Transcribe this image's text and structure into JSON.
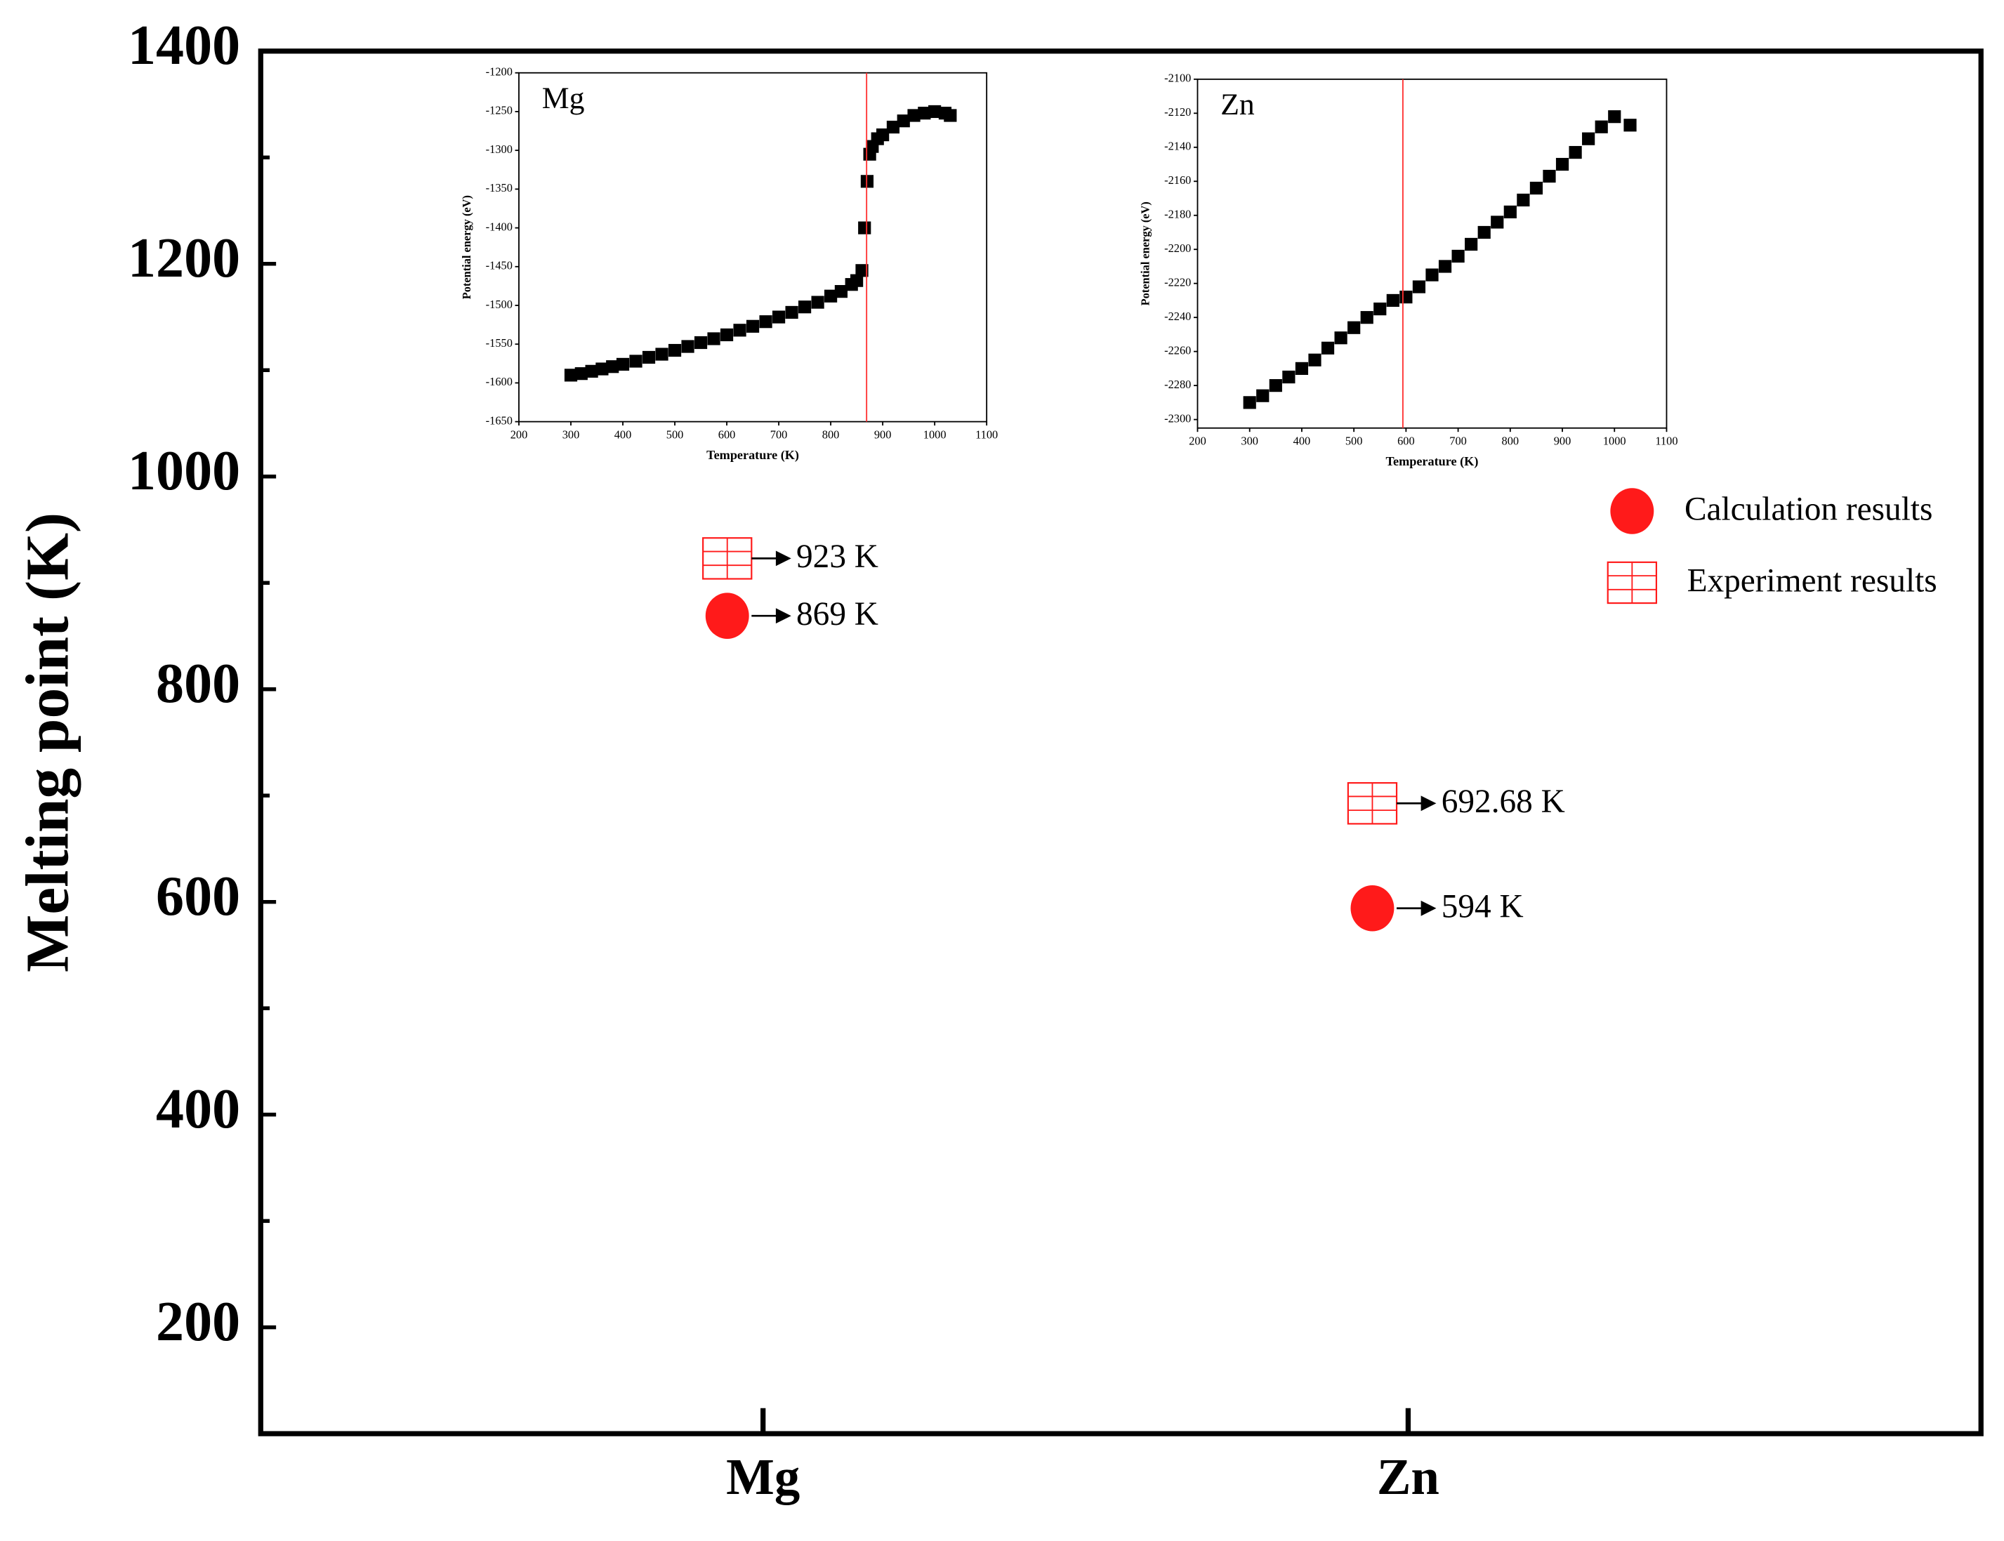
{
  "chart_data": [
    {
      "type": "dot",
      "y_label": "Melting point (K)",
      "categories": [
        "Mg",
        "Zn"
      ],
      "series": [
        {
          "name": "Calculation results",
          "color": "#ff1a1a",
          "marker": "circle",
          "values": [
            869,
            594
          ],
          "value_labels": [
            "869 K",
            "594 K"
          ]
        },
        {
          "name": "Experiment results",
          "color": "#ff1a1a",
          "marker": "hatched-square",
          "values": [
            923,
            692.68
          ],
          "value_labels": [
            "923 K",
            "692.68 K"
          ]
        }
      ],
      "ylim": [
        100,
        1400
      ],
      "yticks": [
        200,
        400,
        600,
        800,
        1000,
        1200,
        1400
      ],
      "yminorticks": [
        300,
        500,
        700,
        900,
        1100,
        1300
      ],
      "legend": "upper right"
    },
    {
      "type": "scatter",
      "title": "Mg",
      "x_label": "Temperature (K)",
      "y_label": "Potential energy (eV)",
      "color": "#000000",
      "x": [
        300,
        320,
        340,
        360,
        380,
        400,
        425,
        450,
        475,
        500,
        525,
        550,
        575,
        600,
        625,
        650,
        675,
        700,
        725,
        750,
        775,
        800,
        820,
        840,
        850,
        860,
        865,
        870,
        875,
        880,
        890,
        900,
        920,
        940,
        960,
        980,
        1000,
        1020,
        1030
      ],
      "y": [
        -1590,
        -1588,
        -1585,
        -1582,
        -1579,
        -1576,
        -1572,
        -1567,
        -1563,
        -1558,
        -1553,
        -1548,
        -1543,
        -1538,
        -1532,
        -1527,
        -1521,
        -1515,
        -1509,
        -1502,
        -1496,
        -1488,
        -1482,
        -1473,
        -1468,
        -1455,
        -1400,
        -1340,
        -1305,
        -1295,
        -1285,
        -1280,
        -1270,
        -1262,
        -1255,
        -1252,
        -1250,
        -1252,
        -1255
      ],
      "vline": 869,
      "vline_color": "#ff3030",
      "xlim": [
        200,
        1100
      ],
      "xticks": [
        200,
        300,
        400,
        500,
        600,
        700,
        800,
        900,
        1000,
        1100
      ],
      "ylim": [
        -1650,
        -1200
      ],
      "yticks": [
        -1650,
        -1600,
        -1550,
        -1500,
        -1450,
        -1400,
        -1350,
        -1300,
        -1250,
        -1200
      ]
    },
    {
      "type": "scatter",
      "title": "Zn",
      "x_label": "Temperature (K)",
      "y_label": "Potential energy (eV)",
      "color": "#000000",
      "x": [
        300,
        325,
        350,
        375,
        400,
        425,
        450,
        475,
        500,
        525,
        550,
        575,
        600,
        625,
        650,
        675,
        700,
        725,
        750,
        775,
        800,
        825,
        850,
        875,
        900,
        925,
        950,
        975,
        1000,
        1030
      ],
      "y": [
        -2290,
        -2286,
        -2280,
        -2275,
        -2270,
        -2265,
        -2258,
        -2252,
        -2246,
        -2240,
        -2235,
        -2230,
        -2228,
        -2222,
        -2215,
        -2210,
        -2204,
        -2197,
        -2190,
        -2184,
        -2178,
        -2171,
        -2164,
        -2157,
        -2150,
        -2143,
        -2135,
        -2128,
        -2122,
        -2127
      ],
      "vline": 594,
      "vline_color": "#ff3030",
      "xlim": [
        200,
        1100
      ],
      "xticks": [
        200,
        300,
        400,
        500,
        600,
        700,
        800,
        900,
        1000,
        1100
      ],
      "ylim": [
        -2305,
        -2100
      ],
      "yticks": [
        -2300,
        -2280,
        -2260,
        -2240,
        -2220,
        -2200,
        -2180,
        -2160,
        -2140,
        -2120,
        -2100
      ]
    }
  ]
}
